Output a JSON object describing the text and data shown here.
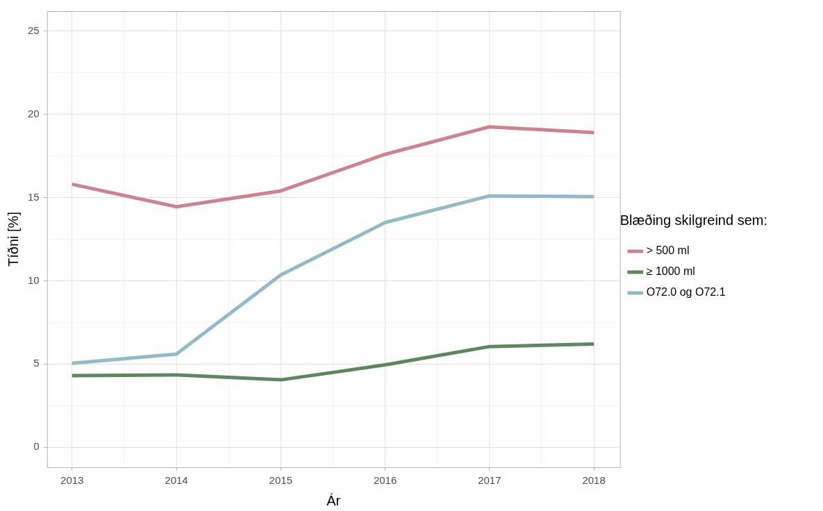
{
  "chart_data": {
    "type": "line",
    "xlabel": "Ár",
    "ylabel": "Tíðni [%]",
    "legend_title": "Blæðing skilgreind sem:",
    "legend": "right",
    "grid": true,
    "line_style": "solid",
    "marker": "none",
    "x": [
      2013,
      2014,
      2015,
      2016,
      2017,
      2018
    ],
    "xlim": [
      2012.76,
      2018.25
    ],
    "xticks": [
      2013,
      {
        "value": 2013.5,
        "label": null
      },
      2014,
      {
        "value": 2014.5,
        "label": null
      },
      2015,
      {
        "value": 2015.5,
        "label": null
      },
      2016,
      {
        "value": 2016.5,
        "label": null
      },
      2017,
      {
        "value": 2017.5,
        "label": null
      },
      2018
    ],
    "ylim": [
      -1.2,
      26.2
    ],
    "yticks": [
      0,
      {
        "value": 2.5,
        "label": null
      },
      5,
      {
        "value": 7.5,
        "label": null
      },
      10,
      {
        "value": 12.5,
        "label": null
      },
      15,
      {
        "value": 17.5,
        "label": null
      },
      20,
      {
        "value": 22.5,
        "label": null
      },
      25
    ],
    "series": [
      {
        "name": "> 500 ml",
        "color": "#c9848f",
        "values": [
          15.8,
          14.45,
          15.4,
          17.6,
          19.25,
          18.9
        ]
      },
      {
        "name": "≥ 1000 ml",
        "color": "#5f875f",
        "values": [
          4.3,
          4.35,
          4.05,
          4.95,
          6.05,
          6.2
        ]
      },
      {
        "name": "O72.0 og O72.1",
        "color": "#94bac8",
        "values": [
          5.05,
          5.6,
          10.35,
          13.5,
          15.1,
          15.05
        ]
      }
    ]
  }
}
